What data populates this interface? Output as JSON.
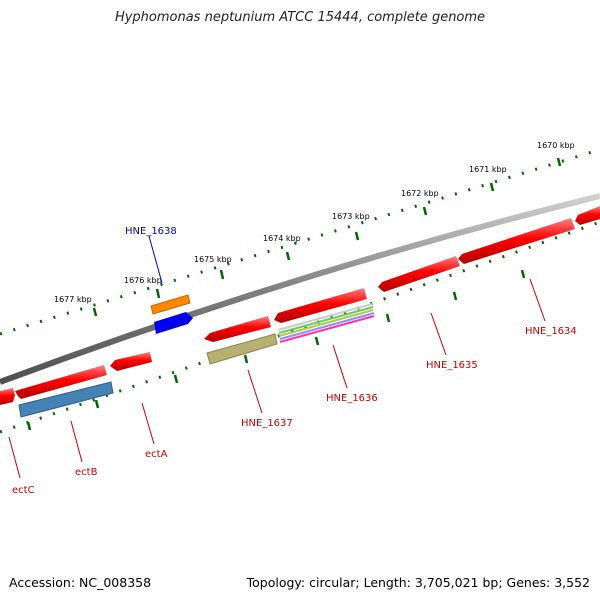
{
  "header": {
    "title": "Hyphomonas neptunium ATCC 15444, complete genome"
  },
  "footer": {
    "accession": "Accession: NC_008358",
    "topology": "Topology: circular; Length: 3,705,021 bp; Genes: 3,552"
  },
  "scale": {
    "tick_labels": [
      "1677 kbp",
      "1676 kbp",
      "1675 kbp",
      "1674 kbp",
      "1673 kbp",
      "1672 kbp",
      "1671 kbp",
      "1670 kbp"
    ]
  },
  "genes": {
    "hne_1638": "HNE_1638",
    "hne_1637": "HNE_1637",
    "hne_1636": "HNE_1636",
    "hne_1635": "HNE_1635",
    "hne_1634": "HNE_1634",
    "ectA": "ectA",
    "ectB": "ectB",
    "ectC": "ectC"
  },
  "colors": {
    "backbone": "#808080",
    "gene_red": "#ff0000",
    "tick_green": "#006600",
    "label_red": "#cc0000",
    "label_blue": "#0000cc",
    "orange": "#ff8800",
    "blue": "#0000ee",
    "steel_blue": "#4682b4",
    "khaki": "#b8b070"
  }
}
